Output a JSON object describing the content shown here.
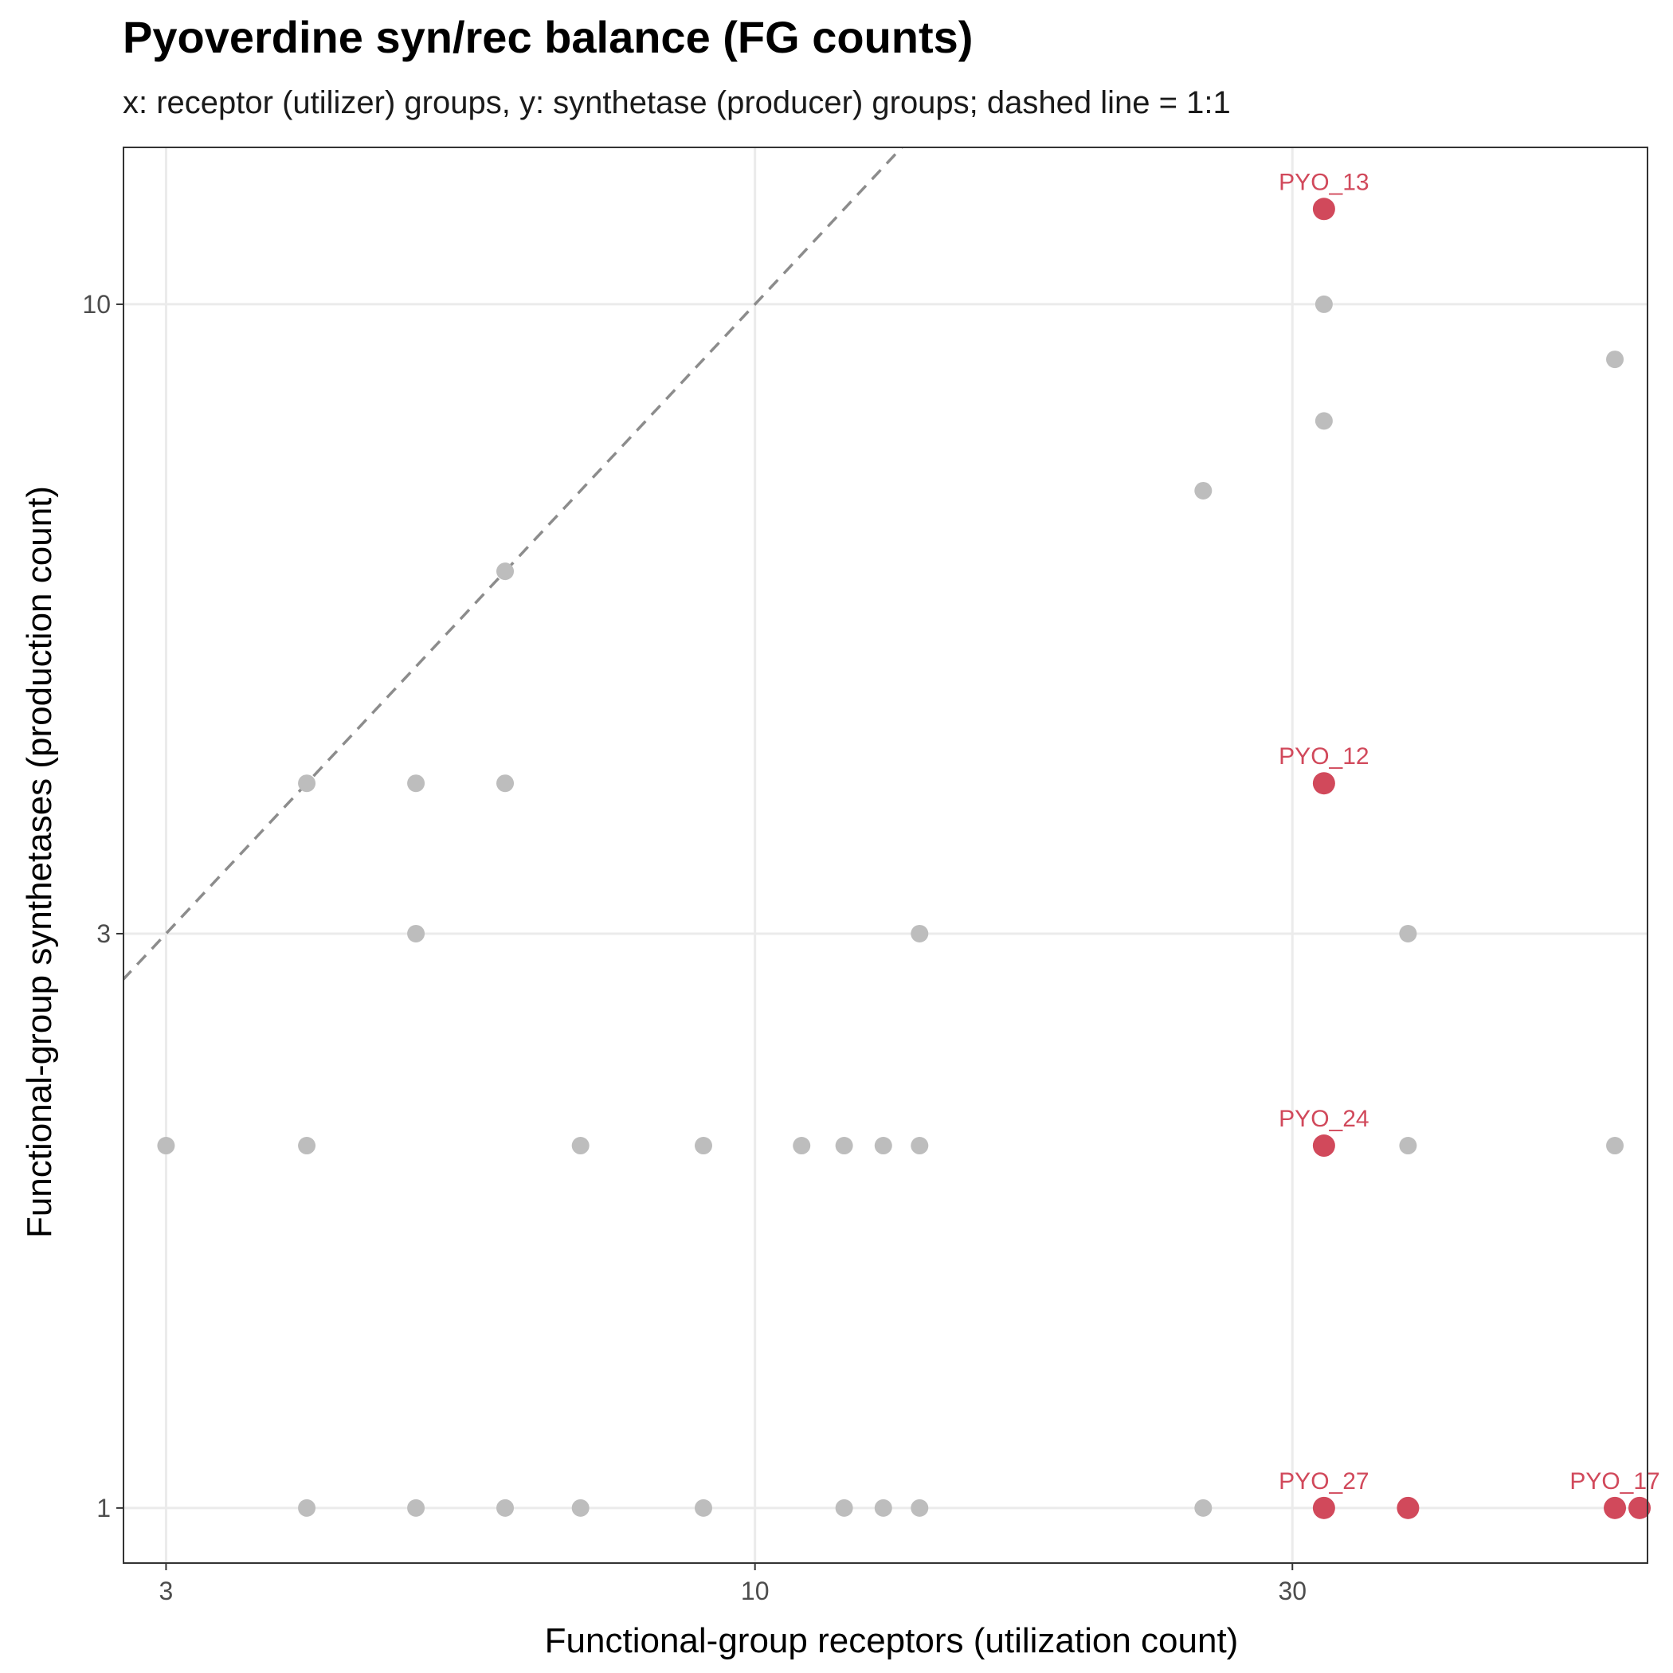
{
  "colors": {
    "highlight": "#d1495b",
    "background_points": "#bdbdbd",
    "grid": "#ebebeb",
    "reference_line": "#8c8c8c",
    "panel_border": "#333333"
  },
  "chart_data": {
    "type": "scatter",
    "title": "Pyoverdine syn/rec balance (FG counts)",
    "subtitle": "x: receptor (utilizer) groups, y: synthetase (producer) groups; dashed line = 1:1",
    "xlabel": "Functional-group receptors (utilization count)",
    "ylabel": "Functional-group synthetases (production count)",
    "x_scale": "log10",
    "y_scale": "log10",
    "xlim": [
      2.75,
      62
    ],
    "ylim": [
      0.9,
      13.5
    ],
    "x_ticks": [
      3,
      10,
      30
    ],
    "y_ticks": [
      1,
      3,
      10
    ],
    "x_tick_labels": [
      "3",
      "10",
      "30"
    ],
    "y_tick_labels": [
      "1",
      "3",
      "10"
    ],
    "grid": true,
    "legend": "none",
    "reference_line": {
      "label": "1:1",
      "style": "dashed"
    },
    "series": [
      {
        "group": "other",
        "points": [
          {
            "x": 3,
            "y": 2
          },
          {
            "x": 4,
            "y": 2
          },
          {
            "x": 7,
            "y": 2
          },
          {
            "x": 9,
            "y": 2
          },
          {
            "x": 11,
            "y": 2
          },
          {
            "x": 12,
            "y": 2
          },
          {
            "x": 13,
            "y": 2
          },
          {
            "x": 14,
            "y": 2
          },
          {
            "x": 38,
            "y": 2
          },
          {
            "x": 58,
            "y": 2
          },
          {
            "x": 4,
            "y": 4
          },
          {
            "x": 5,
            "y": 4
          },
          {
            "x": 6,
            "y": 4
          },
          {
            "x": 5,
            "y": 3
          },
          {
            "x": 14,
            "y": 3
          },
          {
            "x": 38,
            "y": 3
          },
          {
            "x": 6,
            "y": 6
          },
          {
            "x": 25,
            "y": 7
          },
          {
            "x": 32,
            "y": 8
          },
          {
            "x": 32,
            "y": 10
          },
          {
            "x": 58,
            "y": 9
          },
          {
            "x": 4,
            "y": 1
          },
          {
            "x": 5,
            "y": 1
          },
          {
            "x": 6,
            "y": 1
          },
          {
            "x": 7,
            "y": 1
          },
          {
            "x": 9,
            "y": 1
          },
          {
            "x": 12,
            "y": 1
          },
          {
            "x": 13,
            "y": 1
          },
          {
            "x": 14,
            "y": 1
          },
          {
            "x": 25,
            "y": 1
          }
        ]
      },
      {
        "group": "highlighted",
        "points": [
          {
            "x": 32,
            "y": 12,
            "label": "PYO_13"
          },
          {
            "x": 32,
            "y": 4,
            "label": "PYO_12"
          },
          {
            "x": 32,
            "y": 2,
            "label": "PYO_24"
          },
          {
            "x": 32,
            "y": 1,
            "label": "PYO_27"
          },
          {
            "x": 38,
            "y": 1,
            "label": ""
          },
          {
            "x": 58,
            "y": 1,
            "label": "PYO_17"
          },
          {
            "x": 61,
            "y": 1,
            "label": ""
          }
        ]
      }
    ]
  }
}
